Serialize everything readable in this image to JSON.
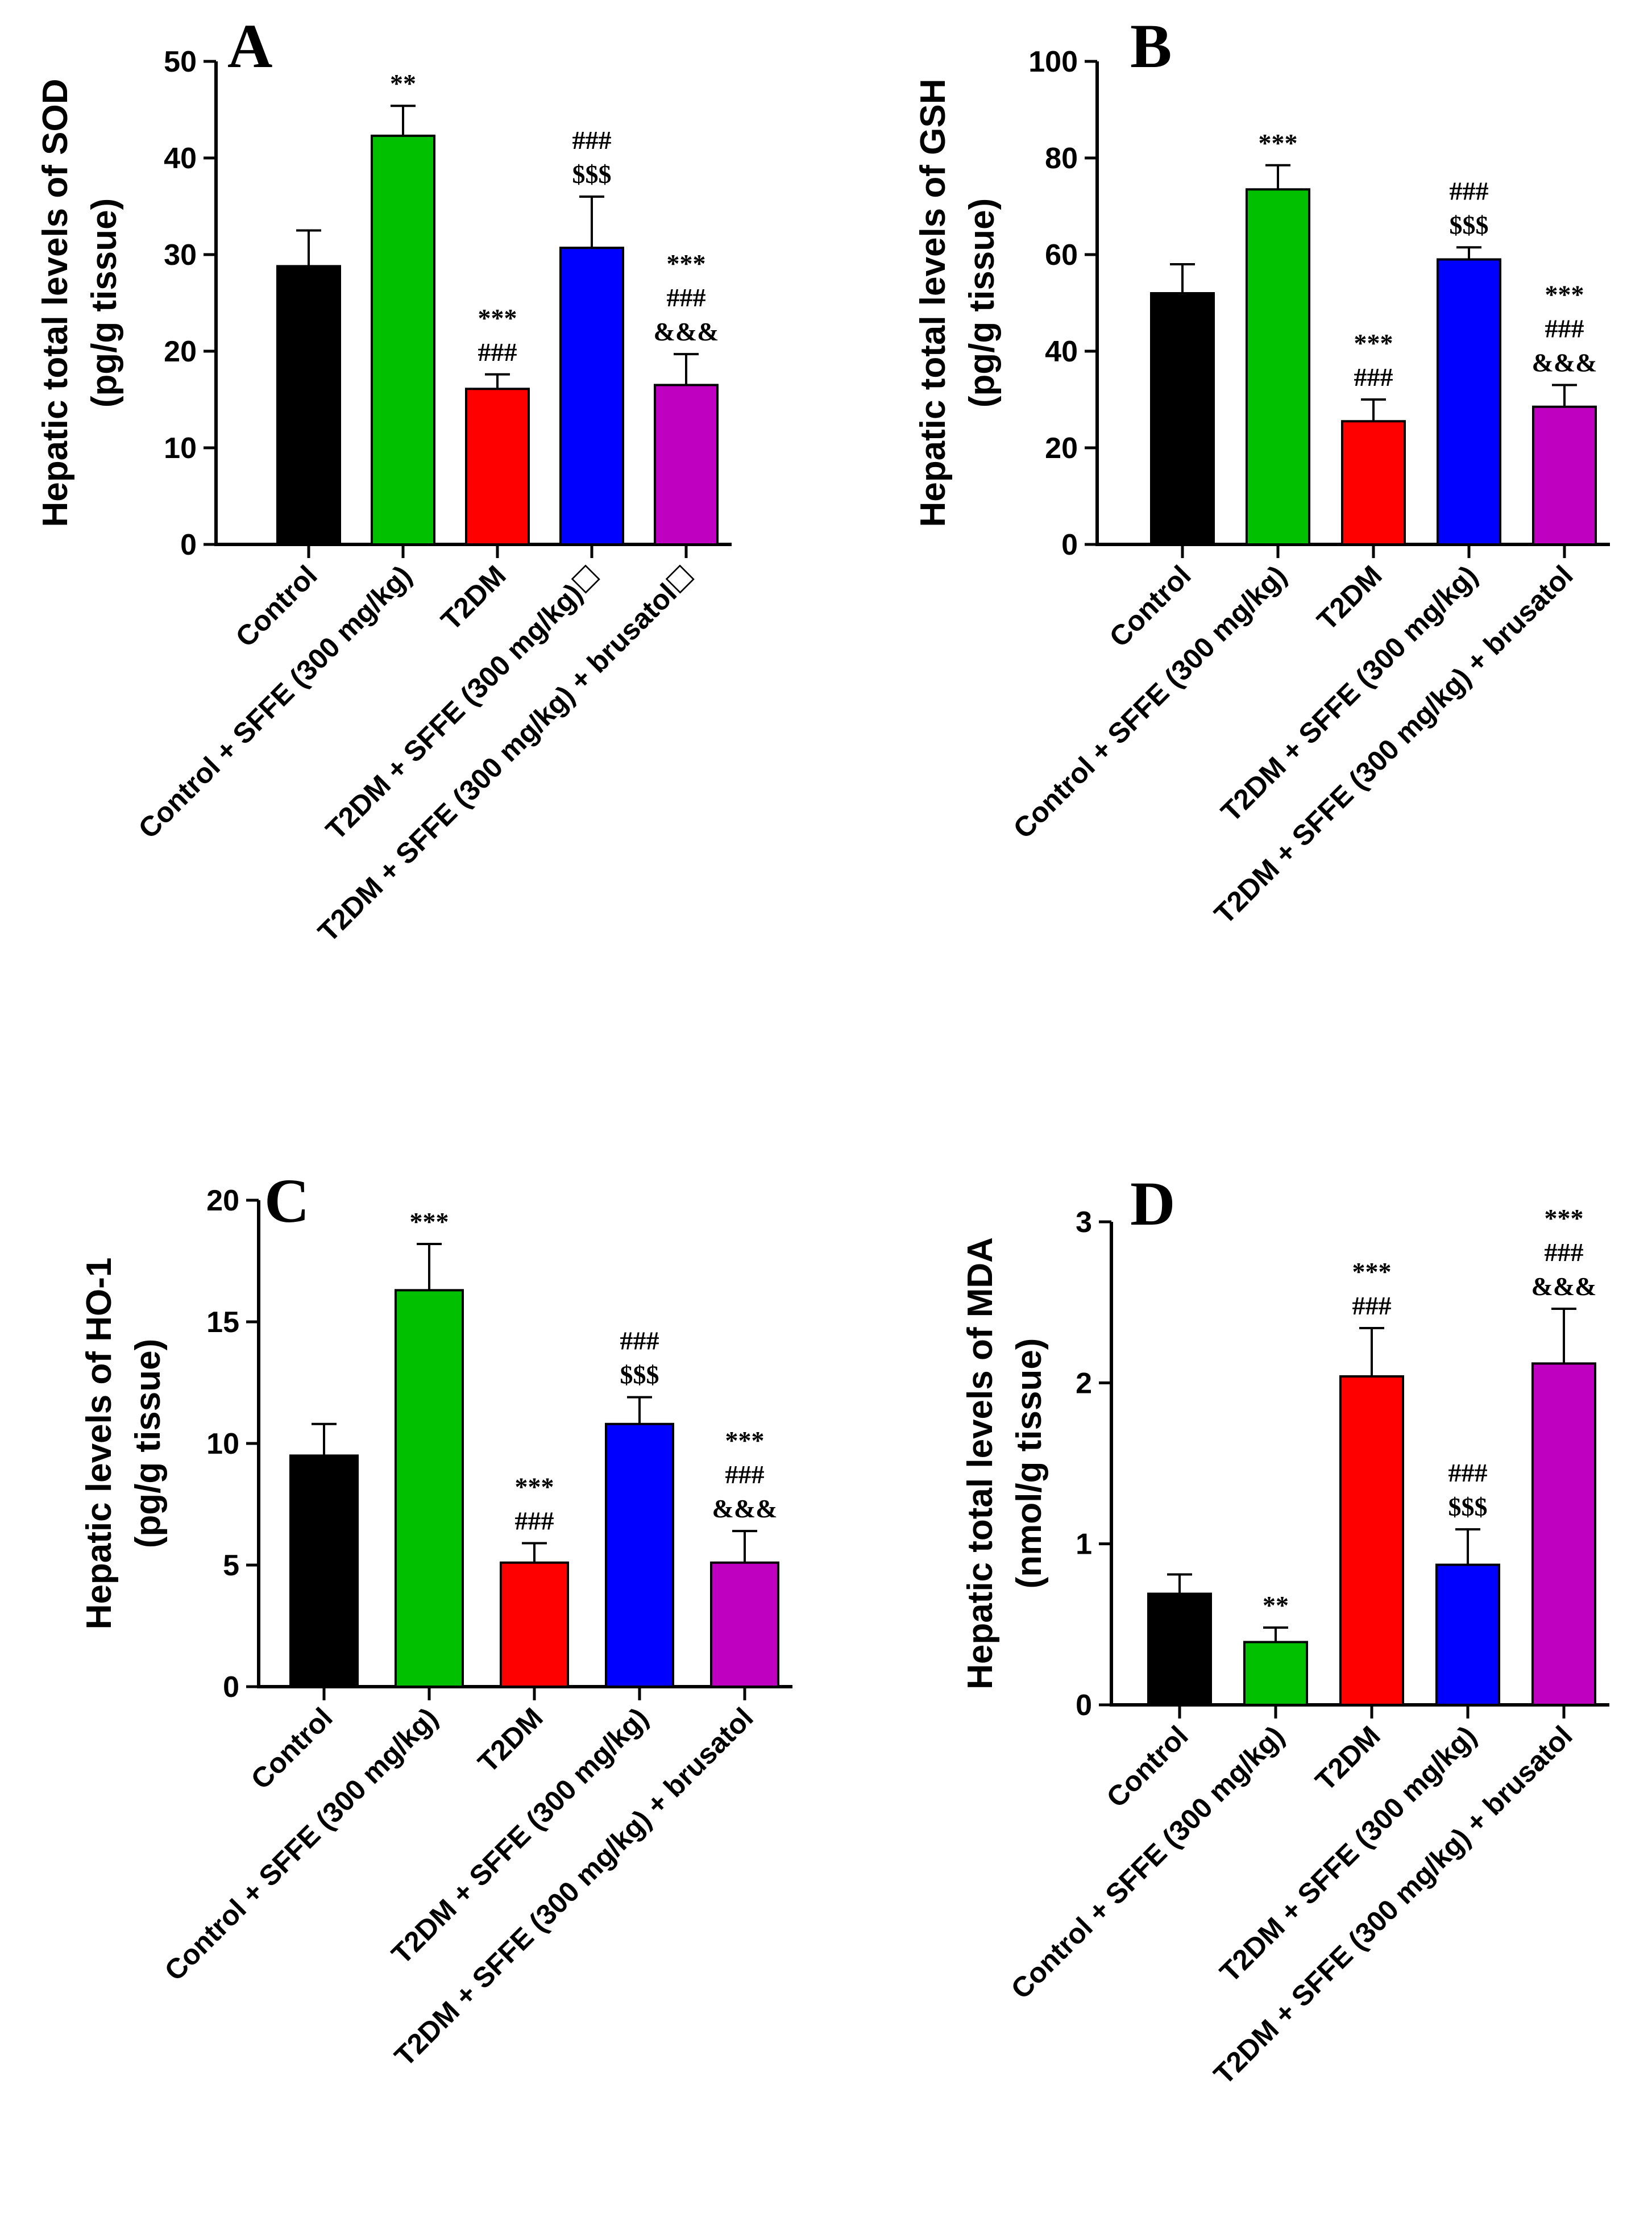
{
  "chart_data": [
    {
      "type": "bar",
      "panel": "A",
      "ylabel": [
        "Hepatic total levels of SOD",
        "(pg/g tissue)"
      ],
      "ylim": [
        0,
        50
      ],
      "yticks": [
        0,
        10,
        20,
        30,
        40,
        50
      ],
      "categories": [
        "Control",
        "Control + SFFE (300 mg/kg)",
        "T2DM",
        "T2DM + SFFE (300 mg/kg)☐",
        "T2DM + SFFE (300 mg/kg) + brusatol☐"
      ],
      "values": [
        28.8,
        42.3,
        16.1,
        30.7,
        16.5
      ],
      "errors": [
        3.7,
        3.1,
        1.5,
        5.3,
        3.2
      ],
      "colors": [
        "#000000",
        "#00c000",
        "#ff0000",
        "#0000ff",
        "#c000c0"
      ],
      "annotations": [
        [],
        [
          "**"
        ],
        [
          "***",
          "###"
        ],
        [
          "###",
          "$$$"
        ],
        [
          "***",
          "###",
          "&&&"
        ]
      ]
    },
    {
      "type": "bar",
      "panel": "B",
      "ylabel": [
        "Hepatic total levels of GSH",
        "(pg/g tissue)"
      ],
      "ylim": [
        0,
        100
      ],
      "yticks": [
        0,
        20,
        40,
        60,
        80,
        100
      ],
      "categories": [
        "Control",
        "Control + SFFE (300 mg/kg)",
        "T2DM",
        "T2DM + SFFE (300 mg/kg)",
        "T2DM + SFFE (300 mg/kg) + brusatol"
      ],
      "values": [
        52,
        73.5,
        25.5,
        59,
        28.5
      ],
      "errors": [
        6,
        5,
        4.5,
        2.5,
        4.5
      ],
      "colors": [
        "#000000",
        "#00c000",
        "#ff0000",
        "#0000ff",
        "#c000c0"
      ],
      "annotations": [
        [],
        [
          "***"
        ],
        [
          "***",
          "###"
        ],
        [
          "###",
          "$$$"
        ],
        [
          "***",
          "###",
          "&&&"
        ]
      ]
    },
    {
      "type": "bar",
      "panel": "C",
      "ylabel": [
        "Hepatic levels of HO-1",
        "(pg/g tissue)"
      ],
      "ylim": [
        0,
        20
      ],
      "yticks": [
        0,
        5,
        10,
        15,
        20
      ],
      "categories": [
        "Control",
        "Control + SFFE (300 mg/kg)",
        "T2DM",
        "T2DM + SFFE (300 mg/kg)",
        "T2DM + SFFE (300 mg/kg) + brusatol"
      ],
      "values": [
        9.5,
        16.3,
        5.1,
        10.8,
        5.1
      ],
      "errors": [
        1.3,
        1.9,
        0.8,
        1.1,
        1.3
      ],
      "colors": [
        "#000000",
        "#00c000",
        "#ff0000",
        "#0000ff",
        "#c000c0"
      ],
      "annotations": [
        [],
        [
          "***"
        ],
        [
          "***",
          "###"
        ],
        [
          "###",
          "$$$"
        ],
        [
          "***",
          "###",
          "&&&"
        ]
      ]
    },
    {
      "type": "bar",
      "panel": "D",
      "ylabel": [
        "Hepatic total levels of MDA",
        "(nmol/g tissue)"
      ],
      "ylim": [
        0,
        3
      ],
      "yticks": [
        0,
        1,
        2,
        3
      ],
      "categories": [
        "Control",
        "Control + SFFE (300 mg/kg)",
        "T2DM",
        "T2DM + SFFE (300 mg/kg)",
        "T2DM + SFFE (300 mg/kg) + brusatol"
      ],
      "values": [
        0.69,
        0.39,
        2.04,
        0.87,
        2.12
      ],
      "errors": [
        0.12,
        0.09,
        0.3,
        0.22,
        0.34
      ],
      "colors": [
        "#000000",
        "#00c000",
        "#ff0000",
        "#0000ff",
        "#c000c0"
      ],
      "annotations": [
        [],
        [
          "**"
        ],
        [
          "***",
          "###"
        ],
        [
          "###",
          "$$$"
        ],
        [
          "***",
          "###",
          "&&&"
        ]
      ]
    }
  ]
}
